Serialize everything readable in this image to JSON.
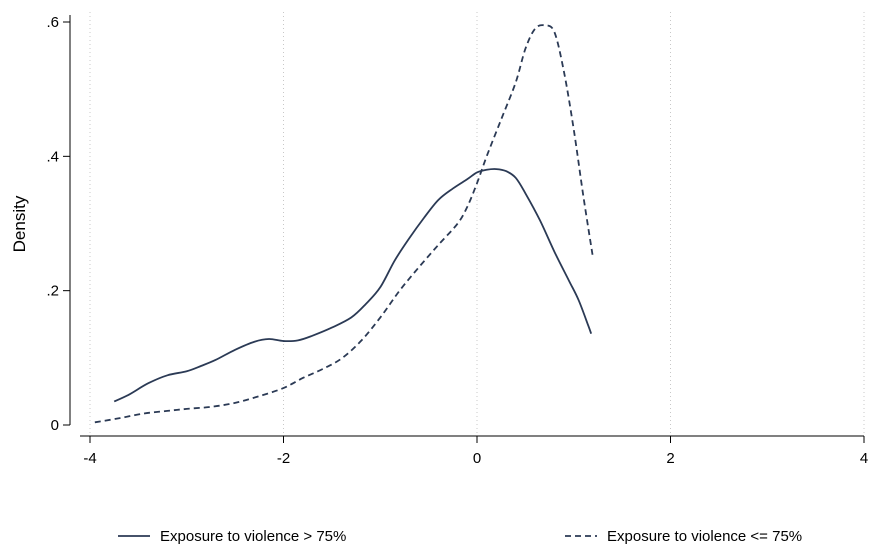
{
  "chart_data": {
    "type": "line",
    "ylabel": "Density",
    "xlabel": "",
    "xlim": [
      -4,
      4
    ],
    "ylim": [
      0,
      0.6
    ],
    "xticks": [
      -4,
      -2,
      0,
      2,
      4
    ],
    "xtick_labels": [
      "-4",
      "-2",
      "0",
      "2",
      "4"
    ],
    "yticks": [
      0,
      0.2,
      0.4,
      0.6
    ],
    "ytick_labels": [
      "0",
      ".2",
      ".4",
      ".6"
    ],
    "grid": "vertical dotted at x ticks",
    "legend_position": "bottom",
    "series": [
      {
        "name": "Exposure to violence > 75%",
        "style": "solid",
        "color": "#2b3a55",
        "points": [
          [
            -3.75,
            0.035
          ],
          [
            -3.6,
            0.045
          ],
          [
            -3.4,
            0.062
          ],
          [
            -3.2,
            0.074
          ],
          [
            -3.0,
            0.08
          ],
          [
            -2.85,
            0.088
          ],
          [
            -2.7,
            0.097
          ],
          [
            -2.5,
            0.112
          ],
          [
            -2.3,
            0.124
          ],
          [
            -2.15,
            0.128
          ],
          [
            -2.0,
            0.125
          ],
          [
            -1.85,
            0.126
          ],
          [
            -1.7,
            0.133
          ],
          [
            -1.5,
            0.145
          ],
          [
            -1.3,
            0.16
          ],
          [
            -1.15,
            0.18
          ],
          [
            -1.0,
            0.205
          ],
          [
            -0.85,
            0.245
          ],
          [
            -0.7,
            0.278
          ],
          [
            -0.55,
            0.308
          ],
          [
            -0.4,
            0.335
          ],
          [
            -0.25,
            0.352
          ],
          [
            -0.1,
            0.366
          ],
          [
            0.0,
            0.376
          ],
          [
            0.1,
            0.38
          ],
          [
            0.2,
            0.381
          ],
          [
            0.3,
            0.378
          ],
          [
            0.4,
            0.368
          ],
          [
            0.5,
            0.345
          ],
          [
            0.65,
            0.305
          ],
          [
            0.8,
            0.258
          ],
          [
            0.95,
            0.215
          ],
          [
            1.05,
            0.186
          ],
          [
            1.15,
            0.148
          ],
          [
            1.18,
            0.136
          ]
        ]
      },
      {
        "name": "Exposure to violence <= 75%",
        "style": "dashed",
        "color": "#2b3a55",
        "points": [
          [
            -3.95,
            0.004
          ],
          [
            -3.7,
            0.01
          ],
          [
            -3.45,
            0.017
          ],
          [
            -3.2,
            0.021
          ],
          [
            -3.0,
            0.024
          ],
          [
            -2.75,
            0.027
          ],
          [
            -2.5,
            0.033
          ],
          [
            -2.25,
            0.043
          ],
          [
            -2.0,
            0.055
          ],
          [
            -1.8,
            0.07
          ],
          [
            -1.6,
            0.083
          ],
          [
            -1.4,
            0.099
          ],
          [
            -1.2,
            0.125
          ],
          [
            -1.0,
            0.16
          ],
          [
            -0.8,
            0.2
          ],
          [
            -0.6,
            0.235
          ],
          [
            -0.4,
            0.268
          ],
          [
            -0.2,
            0.3
          ],
          [
            -0.1,
            0.325
          ],
          [
            0.0,
            0.36
          ],
          [
            0.1,
            0.4
          ],
          [
            0.25,
            0.455
          ],
          [
            0.4,
            0.51
          ],
          [
            0.5,
            0.56
          ],
          [
            0.6,
            0.59
          ],
          [
            0.7,
            0.595
          ],
          [
            0.8,
            0.585
          ],
          [
            0.9,
            0.525
          ],
          [
            1.0,
            0.44
          ],
          [
            1.1,
            0.34
          ],
          [
            1.2,
            0.248
          ]
        ]
      }
    ]
  }
}
